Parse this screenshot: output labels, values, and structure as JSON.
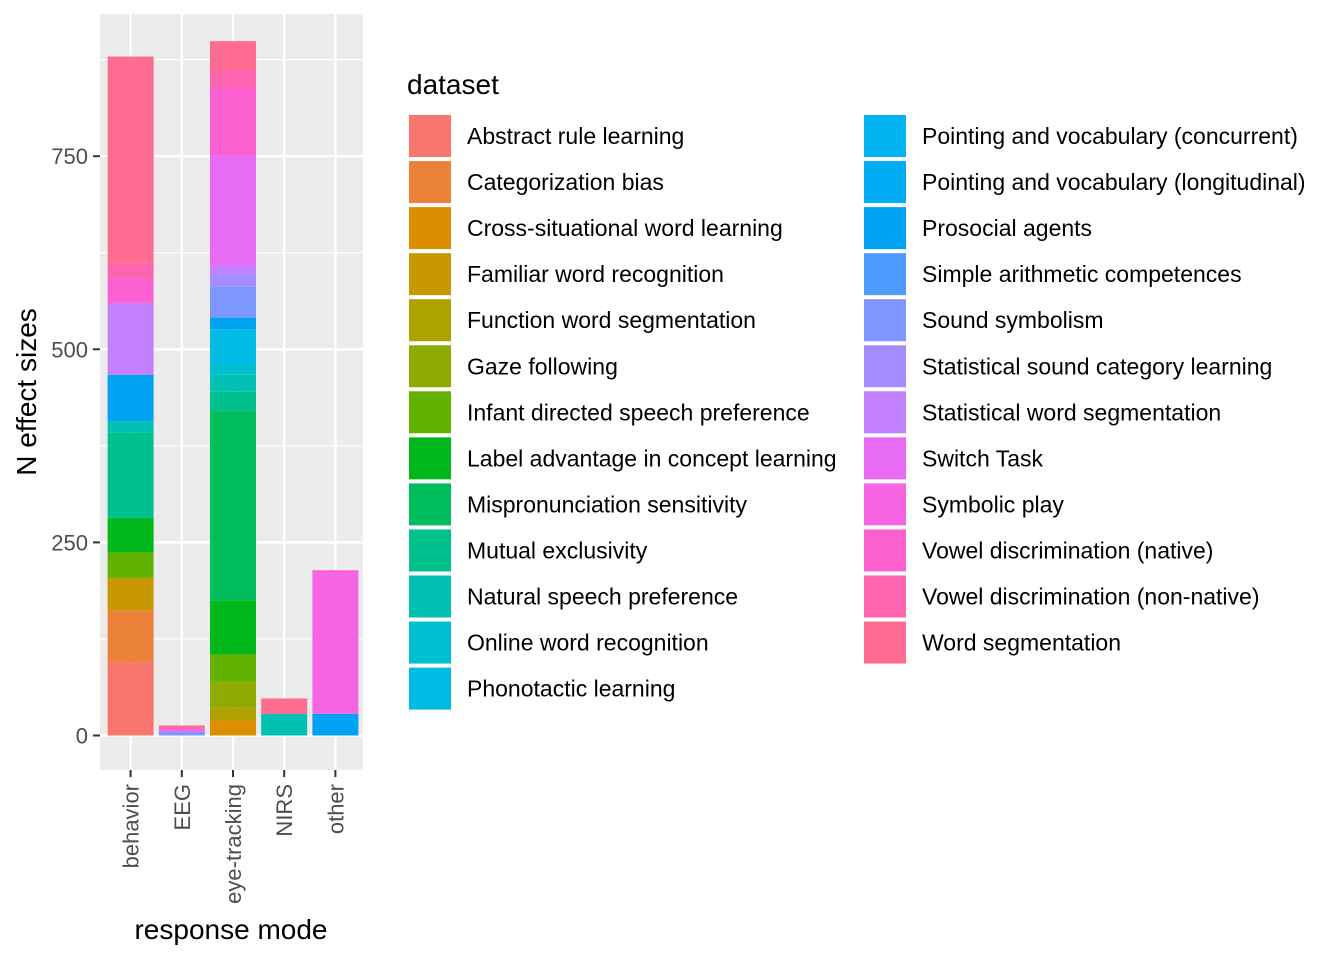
{
  "chart_data": {
    "type": "bar",
    "stacked": true,
    "xlabel": "response mode",
    "ylabel": "N effect sizes",
    "categories": [
      "behavior",
      "EEG",
      "eye-tracking",
      "NIRS",
      "other"
    ],
    "ylim": [
      0,
      900
    ],
    "yticks": [
      0,
      250,
      500,
      750
    ],
    "grid": true,
    "legend": {
      "title": "dataset",
      "placement": "right",
      "columns": 2
    },
    "series": [
      {
        "name": "Abstract rule learning",
        "color": "#F8766D",
        "values": [
          95,
          0,
          0,
          0,
          0
        ]
      },
      {
        "name": "Categorization bias",
        "color": "#EC8239",
        "values": [
          67,
          0,
          0,
          0,
          0
        ]
      },
      {
        "name": "Cross-situational word learning",
        "color": "#DB8E00",
        "values": [
          0,
          0,
          20,
          0,
          0
        ]
      },
      {
        "name": "Familiar word recognition",
        "color": "#C79800",
        "values": [
          42,
          0,
          0,
          0,
          0
        ]
      },
      {
        "name": "Function word segmentation",
        "color": "#AEA200",
        "values": [
          0,
          0,
          16,
          0,
          0
        ]
      },
      {
        "name": "Gaze following",
        "color": "#8FAA00",
        "values": [
          0,
          0,
          34,
          0,
          0
        ]
      },
      {
        "name": "Infant directed speech preference",
        "color": "#64B200",
        "values": [
          33,
          0,
          35,
          0,
          0
        ]
      },
      {
        "name": "Label advantage in concept learning",
        "color": "#00B81B",
        "values": [
          45,
          0,
          70,
          0,
          0
        ]
      },
      {
        "name": "Mispronunciation sensitivity",
        "color": "#00BD5C",
        "values": [
          0,
          0,
          245,
          0,
          0
        ]
      },
      {
        "name": "Mutual exclusivity",
        "color": "#00C08E",
        "values": [
          110,
          0,
          25,
          0,
          0
        ]
      },
      {
        "name": "Natural speech preference",
        "color": "#00C1B2",
        "values": [
          15,
          0,
          22,
          28,
          0
        ]
      },
      {
        "name": "Online word recognition",
        "color": "#00BFD0",
        "values": [
          0,
          0,
          14,
          0,
          0
        ]
      },
      {
        "name": "Phonotactic learning",
        "color": "#00BBE4",
        "values": [
          0,
          0,
          45,
          0,
          0
        ]
      },
      {
        "name": "Pointing and vocabulary (concurrent)",
        "color": "#00B4EF",
        "values": [
          0,
          0,
          0,
          0,
          0
        ]
      },
      {
        "name": "Pointing and vocabulary (longitudinal)",
        "color": "#00ACF3",
        "values": [
          0,
          0,
          0,
          0,
          0
        ]
      },
      {
        "name": "Prosocial agents",
        "color": "#00A2F2",
        "values": [
          60,
          0,
          15,
          0,
          28
        ]
      },
      {
        "name": "Simple arithmetic competences",
        "color": "#4D9BFF",
        "values": [
          0,
          0,
          0,
          0,
          0
        ]
      },
      {
        "name": "Sound symbolism",
        "color": "#7E96FF",
        "values": [
          0,
          5,
          40,
          0,
          0
        ]
      },
      {
        "name": "Statistical sound category learning",
        "color": "#A68DFF",
        "values": [
          0,
          0,
          17,
          0,
          0
        ]
      },
      {
        "name": "Statistical word segmentation",
        "color": "#C280FF",
        "values": [
          93,
          0,
          10,
          0,
          0
        ]
      },
      {
        "name": "Switch Task",
        "color": "#E76BF3",
        "values": [
          0,
          0,
          143,
          0,
          0
        ]
      },
      {
        "name": "Symbolic play",
        "color": "#F564E3",
        "values": [
          0,
          4,
          0,
          0,
          182
        ]
      },
      {
        "name": "Vowel discrimination (native)",
        "color": "#FD61D1",
        "values": [
          32,
          0,
          88,
          0,
          4
        ]
      },
      {
        "name": "Vowel discrimination (non-native)",
        "color": "#FF65AE",
        "values": [
          20,
          0,
          22,
          0,
          0
        ]
      },
      {
        "name": "Word segmentation",
        "color": "#FF6C91",
        "values": [
          267,
          4,
          38,
          20,
          0
        ]
      }
    ]
  }
}
